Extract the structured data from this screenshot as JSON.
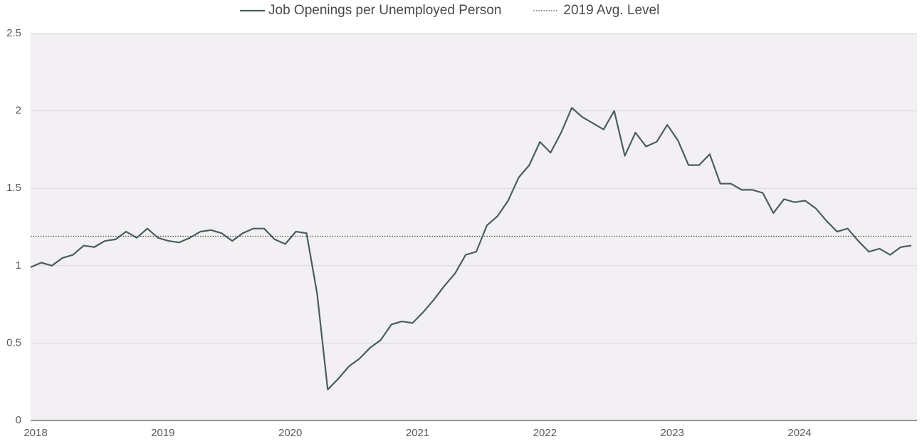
{
  "chart_data": {
    "type": "line",
    "categories": [
      "2018",
      null,
      null,
      null,
      null,
      null,
      null,
      null,
      null,
      null,
      null,
      null,
      "2019",
      null,
      null,
      null,
      null,
      null,
      null,
      null,
      null,
      null,
      null,
      null,
      "2020",
      null,
      null,
      null,
      null,
      null,
      null,
      null,
      null,
      null,
      null,
      null,
      "2021",
      null,
      null,
      null,
      null,
      null,
      null,
      null,
      null,
      null,
      null,
      null,
      "2022",
      null,
      null,
      null,
      null,
      null,
      null,
      null,
      null,
      null,
      null,
      null,
      "2023",
      null,
      null,
      null,
      null,
      null,
      null,
      null,
      null,
      null,
      null,
      null,
      "2024",
      null,
      null,
      null,
      null,
      null,
      null,
      null,
      null,
      null,
      null,
      null
    ],
    "series": [
      {
        "name": "Job Openings per Unemployed Person",
        "color": "#4a5e5a",
        "values": [
          0.99,
          1.02,
          1.0,
          1.05,
          1.07,
          1.13,
          1.12,
          1.16,
          1.17,
          1.22,
          1.18,
          1.24,
          1.18,
          1.16,
          1.15,
          1.18,
          1.22,
          1.23,
          1.21,
          1.16,
          1.21,
          1.24,
          1.24,
          1.17,
          1.14,
          1.22,
          1.21,
          0.82,
          0.2,
          0.27,
          0.35,
          0.4,
          0.47,
          0.52,
          0.62,
          0.64,
          0.63,
          0.7,
          0.78,
          0.87,
          0.95,
          1.07,
          1.09,
          1.26,
          1.32,
          1.42,
          1.57,
          1.65,
          1.8,
          1.73,
          1.86,
          2.02,
          1.96,
          1.92,
          1.88,
          2.0,
          1.71,
          1.86,
          1.77,
          1.8,
          1.91,
          1.81,
          1.65,
          1.65,
          1.72,
          1.53,
          1.53,
          1.49,
          1.49,
          1.47,
          1.34,
          1.43,
          1.41,
          1.42,
          1.37,
          1.29,
          1.22,
          1.24,
          1.16,
          1.09,
          1.11,
          1.07,
          1.12,
          1.13
        ]
      }
    ],
    "reference_line": {
      "name": "2019 Avg. Level",
      "value": 1.19,
      "color": "#4a4a4a",
      "style": "dotted"
    },
    "ylim": [
      0,
      2.5
    ],
    "yticks": [
      0,
      0.5,
      1,
      1.5,
      2,
      2.5
    ],
    "grid": true,
    "legend": "top"
  }
}
